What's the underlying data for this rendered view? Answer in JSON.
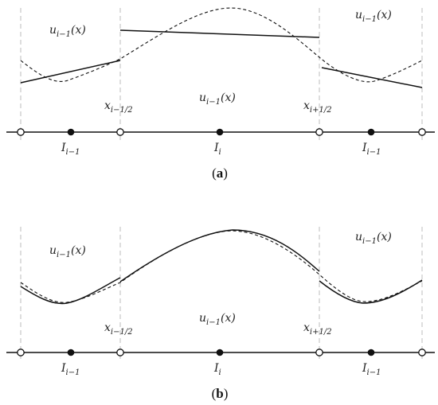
{
  "panels": [
    {
      "id": "a",
      "caption": {
        "open": "(",
        "letter": "a",
        "close": ")"
      },
      "labels": {
        "u_left": {
          "base": "u",
          "sub": "i−1",
          "arg": "(x)"
        },
        "u_center": {
          "base": "u",
          "sub": "i−1",
          "arg": "(x)"
        },
        "u_right": {
          "base": "u",
          "sub": "i−1",
          "arg": "(x)"
        },
        "x_left": {
          "base": "x",
          "sub": "i−1/2"
        },
        "x_right": {
          "base": "x",
          "sub": "i+1/2"
        },
        "I_left": {
          "base": "I",
          "sub": "i−1"
        },
        "I_center": {
          "base": "I",
          "sub": "i"
        },
        "I_right": {
          "base": "I",
          "sub": "i−1"
        }
      }
    },
    {
      "id": "b",
      "caption": {
        "open": "(",
        "letter": "b",
        "close": ")"
      },
      "labels": {
        "u_left": {
          "base": "u",
          "sub": "i−1",
          "arg": "(x)"
        },
        "u_center": {
          "base": "u",
          "sub": "i−1",
          "arg": "(x)"
        },
        "u_right": {
          "base": "u",
          "sub": "i−1",
          "arg": "(x)"
        },
        "x_left": {
          "base": "x",
          "sub": "i−1/2"
        },
        "x_right": {
          "base": "x",
          "sub": "i+1/2"
        },
        "I_left": {
          "base": "I",
          "sub": "i−1"
        },
        "I_center": {
          "base": "I",
          "sub": "i"
        },
        "I_right": {
          "base": "I",
          "sub": "i−1"
        }
      }
    }
  ]
}
